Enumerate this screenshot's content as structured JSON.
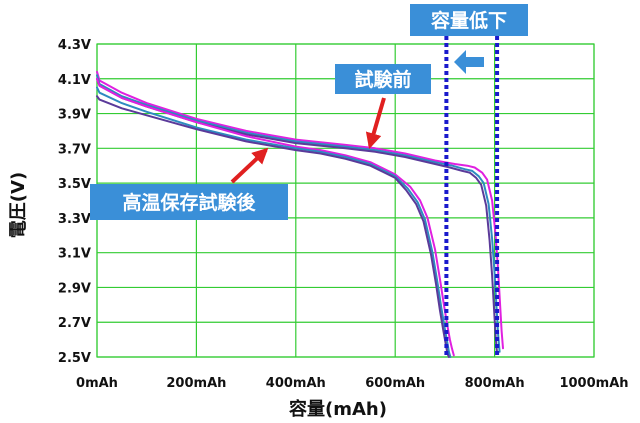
{
  "chart_data": {
    "type": "line",
    "xlabel": "容量(mAh)",
    "ylabel": "電圧(V)",
    "xlim": [
      0,
      1000
    ],
    "ylim": [
      2.5,
      4.3
    ],
    "x_ticks": [
      0,
      200,
      400,
      600,
      800,
      1000
    ],
    "x_tick_labels": [
      "0mAh",
      "200mAh",
      "400mAh",
      "600mAh",
      "800mAh",
      "1000mAh"
    ],
    "y_ticks": [
      2.5,
      2.7,
      2.9,
      3.1,
      3.3,
      3.5,
      3.7,
      3.9,
      4.1,
      4.3
    ],
    "y_tick_labels": [
      "2.5V",
      "2.7V",
      "2.9V",
      "3.1V",
      "3.3V",
      "3.5V",
      "3.7V",
      "3.9V",
      "4.1V",
      "4.3V"
    ],
    "grid": true,
    "grid_color": "#33cc33",
    "series": [
      {
        "color": "#e020e0",
        "x": [
          0,
          5,
          50,
          100,
          200,
          300,
          400,
          500,
          560,
          620,
          680,
          720,
          745,
          760,
          775,
          785,
          795,
          802,
          807,
          811,
          814,
          817
        ],
        "y": [
          4.14,
          4.09,
          4.02,
          3.96,
          3.87,
          3.8,
          3.75,
          3.72,
          3.7,
          3.67,
          3.63,
          3.61,
          3.6,
          3.59,
          3.56,
          3.52,
          3.4,
          3.2,
          3.0,
          2.8,
          2.65,
          2.55
        ]
      },
      {
        "color": "#2e8bc0",
        "x": [
          0,
          5,
          50,
          100,
          200,
          300,
          400,
          500,
          560,
          620,
          680,
          715,
          740,
          755,
          768,
          778,
          788,
          795,
          800,
          804,
          807,
          810
        ],
        "y": [
          4.12,
          4.07,
          4.0,
          3.95,
          3.86,
          3.79,
          3.74,
          3.71,
          3.69,
          3.66,
          3.62,
          3.6,
          3.58,
          3.57,
          3.54,
          3.5,
          3.38,
          3.18,
          2.98,
          2.78,
          2.63,
          2.53
        ]
      },
      {
        "color": "#5b3a9a",
        "x": [
          0,
          5,
          50,
          100,
          200,
          300,
          400,
          500,
          560,
          620,
          680,
          710,
          735,
          750,
          763,
          773,
          783,
          790,
          795,
          799,
          802,
          805
        ],
        "y": [
          4.1,
          4.06,
          3.99,
          3.94,
          3.85,
          3.78,
          3.73,
          3.7,
          3.68,
          3.65,
          3.61,
          3.59,
          3.57,
          3.56,
          3.53,
          3.49,
          3.37,
          3.17,
          2.97,
          2.77,
          2.62,
          2.52
        ]
      },
      {
        "color": "#e020e0",
        "x": [
          0,
          5,
          50,
          100,
          200,
          300,
          400,
          450,
          500,
          550,
          600,
          630,
          650,
          665,
          680,
          690,
          698,
          705,
          710,
          714,
          718
        ],
        "y": [
          4.1,
          4.06,
          3.99,
          3.94,
          3.85,
          3.77,
          3.71,
          3.69,
          3.66,
          3.62,
          3.55,
          3.48,
          3.4,
          3.3,
          3.12,
          2.95,
          2.8,
          2.68,
          2.6,
          2.55,
          2.51
        ]
      },
      {
        "color": "#2e8bc0",
        "x": [
          0,
          5,
          50,
          100,
          200,
          300,
          400,
          450,
          500,
          550,
          600,
          625,
          645,
          660,
          675,
          685,
          693,
          700,
          705,
          708,
          711
        ],
        "y": [
          4.05,
          4.02,
          3.96,
          3.91,
          3.82,
          3.75,
          3.7,
          3.68,
          3.65,
          3.61,
          3.54,
          3.47,
          3.39,
          3.29,
          3.1,
          2.93,
          2.78,
          2.66,
          2.58,
          2.53,
          2.5
        ]
      },
      {
        "color": "#5b3a9a",
        "x": [
          0,
          5,
          50,
          100,
          200,
          300,
          400,
          450,
          500,
          550,
          600,
          622,
          642,
          657,
          672,
          682,
          690,
          697,
          702,
          705,
          708
        ],
        "y": [
          4.0,
          3.98,
          3.93,
          3.89,
          3.81,
          3.74,
          3.69,
          3.67,
          3.64,
          3.6,
          3.53,
          3.46,
          3.38,
          3.28,
          3.09,
          2.92,
          2.77,
          2.65,
          2.57,
          2.52,
          2.5
        ]
      }
    ],
    "reference_lines": [
      {
        "x": 703,
        "color": "#1a1acc",
        "style": "dotted"
      },
      {
        "x": 805,
        "color": "#1a1acc",
        "style": "dotted"
      }
    ],
    "annotations": [
      {
        "text": "試験前",
        "bg": "#3a8fd8"
      },
      {
        "text": "高温保存試験後",
        "bg": "#3a8fd8"
      },
      {
        "text": "容量低下",
        "bg": "#3a8fd8"
      }
    ],
    "arrow_color": "#e02020"
  }
}
